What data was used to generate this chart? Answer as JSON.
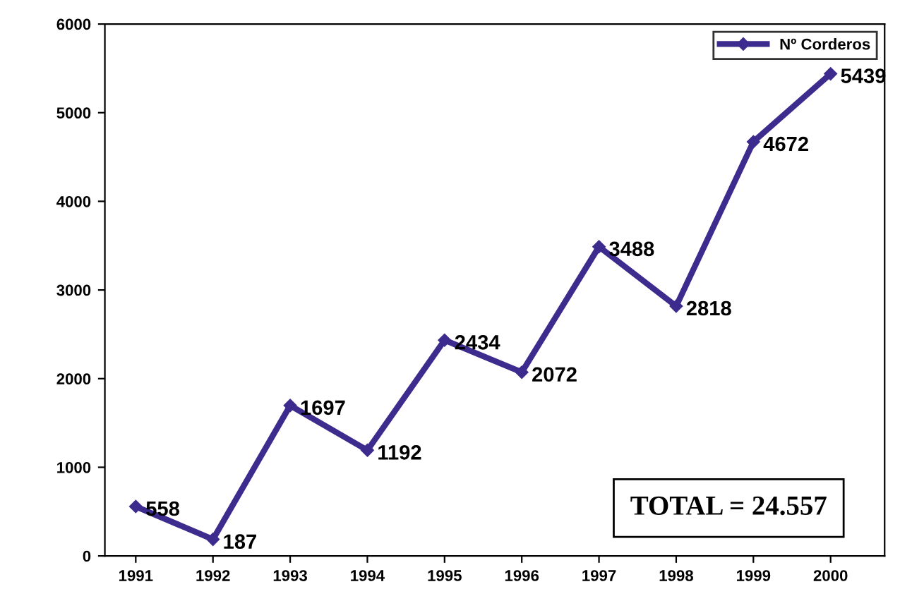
{
  "chart_data": {
    "type": "line",
    "categories": [
      "1991",
      "1992",
      "1993",
      "1994",
      "1995",
      "1996",
      "1997",
      "1998",
      "1999",
      "2000"
    ],
    "series": [
      {
        "name": "Nº Corderos",
        "color": "#3d2b8e",
        "values": [
          558,
          187,
          1697,
          1192,
          2434,
          2072,
          3488,
          2818,
          4672,
          5439
        ]
      }
    ],
    "ylim": [
      0,
      6000
    ],
    "yticks": [
      0,
      1000,
      2000,
      3000,
      4000,
      5000,
      6000
    ],
    "grid": false,
    "legend": "top right",
    "marker": "diamond",
    "line_style": "solid",
    "data_labels": true,
    "annotations": [
      "TOTAL = 24.557"
    ]
  }
}
